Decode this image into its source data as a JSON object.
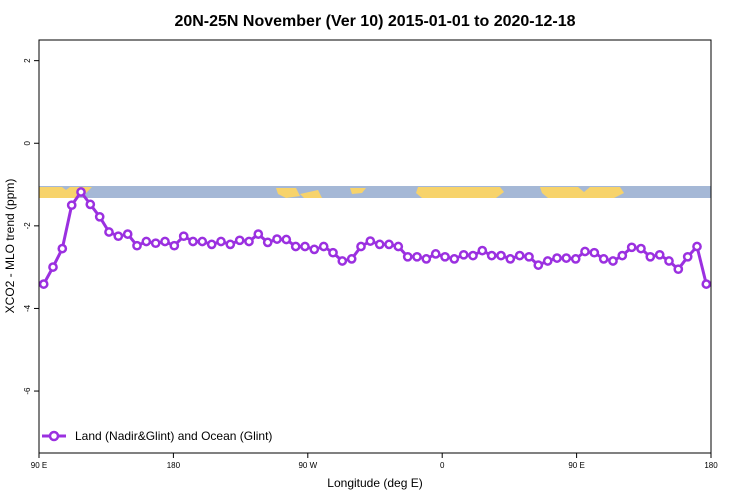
{
  "chart_data": {
    "type": "line",
    "title": "20N-25N November (Ver 10)   2015-01-01 to 2020-12-18",
    "xlabel": "Longitude (deg E)",
    "ylabel": "XCO2 - MLO trend (ppm)",
    "xlim": [
      90,
      450
    ],
    "ylim": [
      -7.5,
      2.5
    ],
    "x_ticks": [
      {
        "value": 90,
        "label": "90 E"
      },
      {
        "value": 162,
        "label": "180"
      },
      {
        "value": 234,
        "label": "90 W"
      },
      {
        "value": 306,
        "label": "0"
      },
      {
        "value": 378,
        "label": "90 E"
      },
      {
        "value": 450,
        "label": "180"
      }
    ],
    "y_ticks": [
      {
        "value": 2,
        "label": "2"
      },
      {
        "value": 0,
        "label": "0"
      },
      {
        "value": -2,
        "label": "-2"
      },
      {
        "value": -4,
        "label": "-4"
      },
      {
        "value": -6,
        "label": "-6"
      }
    ],
    "grid": false,
    "legend_position": "bottom-left",
    "series": [
      {
        "name": "Land (Nadir&Glint) and Ocean (Glint)",
        "color": "#9b30e0",
        "x": [
          92.5,
          97.5,
          102.5,
          107.5,
          112.5,
          117.5,
          122.5,
          127.5,
          132.5,
          137.5,
          142.5,
          147.5,
          152.5,
          157.5,
          162.5,
          167.5,
          172.5,
          177.5,
          182.5,
          187.5,
          192.5,
          197.5,
          202.5,
          207.5,
          212.5,
          217.5,
          222.5,
          227.5,
          232.5,
          237.5,
          242.5,
          247.5,
          252.5,
          257.5,
          262.5,
          267.5,
          272.5,
          277.5,
          282.5,
          287.5,
          292.5,
          297.5,
          302.5,
          307.5,
          312.5,
          317.5,
          322.5,
          327.5,
          332.5,
          337.5,
          342.5,
          347.5,
          352.5,
          357.5,
          362.5,
          367.5,
          372.5,
          377.5,
          382.5,
          387.5,
          392.5,
          397.5,
          402.5,
          407.5,
          412.5,
          417.5,
          422.5,
          427.5,
          432.5,
          437.5,
          442.5,
          447.5
        ],
        "y": [
          -3.41,
          -3.0,
          -2.55,
          -1.5,
          -1.18,
          -1.48,
          -1.78,
          -2.15,
          -2.25,
          -2.2,
          -2.48,
          -2.38,
          -2.42,
          -2.38,
          -2.48,
          -2.25,
          -2.38,
          -2.38,
          -2.45,
          -2.38,
          -2.45,
          -2.35,
          -2.38,
          -2.2,
          -2.4,
          -2.32,
          -2.33,
          -2.5,
          -2.5,
          -2.57,
          -2.5,
          -2.65,
          -2.85,
          -2.8,
          -2.5,
          -2.37,
          -2.45,
          -2.45,
          -2.5,
          -2.75,
          -2.75,
          -2.8,
          -2.68,
          -2.75,
          -2.8,
          -2.7,
          -2.72,
          -2.6,
          -2.72,
          -2.72,
          -2.8,
          -2.72,
          -2.75,
          -2.95,
          -2.85,
          -2.78,
          -2.78,
          -2.8,
          -2.62,
          -2.65,
          -2.8,
          -2.85,
          -2.72,
          -2.52,
          -2.55,
          -2.75,
          -2.7,
          -2.85,
          -3.05,
          -2.75,
          -2.5,
          -3.41
        ]
      }
    ]
  }
}
